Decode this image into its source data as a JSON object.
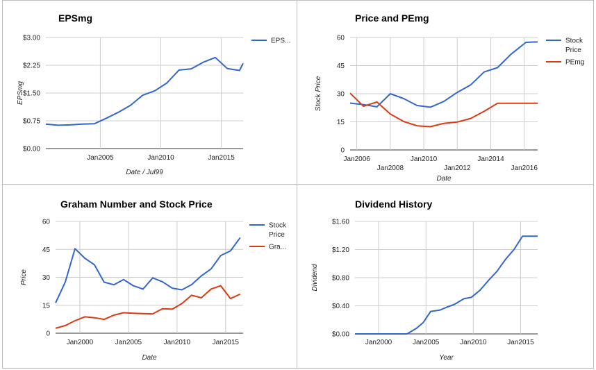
{
  "colors": {
    "blue": "#3366cc",
    "red": "#dc3912",
    "grid": "#cccccc",
    "baseline": "#333333"
  },
  "chart_data": [
    {
      "type": "line",
      "title": "EPSmg",
      "xlabel": "Date / Jul99",
      "ylabel": "EPSmg",
      "grid": true,
      "legend_placement": "right",
      "xlim": [
        2000.5,
        2016.8
      ],
      "ylim": [
        0,
        3
      ],
      "y_ticks": [
        "$0.00",
        "$0.75",
        "$1.50",
        "$2.25",
        "$3.00"
      ],
      "y_tick_values": [
        0,
        0.75,
        1.5,
        2.25,
        3
      ],
      "x_ticks": [
        {
          "label": "Jan2005",
          "value": 2005
        },
        {
          "label": "Jan2010",
          "value": 2010
        },
        {
          "label": "Jan2015",
          "value": 2015
        }
      ],
      "series": [
        {
          "name": "EPS...",
          "color": "#3366cc",
          "x": [
            2000.5,
            2001.5,
            2002.5,
            2003.5,
            2004.5,
            2005.5,
            2006.5,
            2007.5,
            2008.5,
            2009.5,
            2010.5,
            2011.5,
            2012.5,
            2013.5,
            2014.5,
            2015.5,
            2016.5,
            2016.8
          ],
          "y": [
            0.66,
            0.63,
            0.64,
            0.66,
            0.67,
            0.82,
            0.98,
            1.17,
            1.44,
            1.56,
            1.77,
            2.12,
            2.15,
            2.33,
            2.46,
            2.16,
            2.11,
            2.3
          ]
        }
      ]
    },
    {
      "type": "line",
      "title": "Price and PEmg",
      "xlabel": "Date",
      "ylabel": "Stock Price",
      "grid": true,
      "legend_placement": "right",
      "xlim": [
        2005.6,
        2016.8
      ],
      "ylim": [
        0,
        60
      ],
      "y_ticks": [
        "0",
        "15",
        "30",
        "45",
        "60"
      ],
      "y_tick_values": [
        0,
        15,
        30,
        45,
        60
      ],
      "x_ticks": [
        {
          "label": "Jan2006",
          "value": 2006,
          "row": 1
        },
        {
          "label": "Jan2008",
          "value": 2008,
          "row": 2
        },
        {
          "label": "Jan2010",
          "value": 2010,
          "row": 1
        },
        {
          "label": "Jan2012",
          "value": 2012,
          "row": 2
        },
        {
          "label": "Jan2014",
          "value": 2014,
          "row": 1
        },
        {
          "label": "Jan2016",
          "value": 2016,
          "row": 2
        }
      ],
      "series": [
        {
          "name": "Stock Price",
          "color": "#3366cc",
          "x": [
            2005.6,
            2006.4,
            2007.2,
            2008.0,
            2008.8,
            2009.6,
            2010.4,
            2011.2,
            2012.0,
            2012.8,
            2013.6,
            2014.4,
            2015.2,
            2016.1,
            2016.6,
            2016.8
          ],
          "y": [
            25,
            24.2,
            23,
            30,
            27.4,
            23.7,
            22.8,
            25.9,
            30.7,
            34.7,
            41.6,
            43.9,
            51,
            57.4,
            57.6,
            57.6
          ]
        },
        {
          "name": "PEmg",
          "color": "#dc3912",
          "x": [
            2005.6,
            2006.4,
            2007.2,
            2008.0,
            2008.8,
            2009.6,
            2010.4,
            2011.2,
            2012.0,
            2012.8,
            2013.6,
            2014.4,
            2015.2,
            2016.1,
            2016.6,
            2016.8
          ],
          "y": [
            30.3,
            23.3,
            25.6,
            19.2,
            15.2,
            12.9,
            12.4,
            14.2,
            14.9,
            16.8,
            20.6,
            24.9,
            24.9,
            24.9,
            24.9,
            24.9
          ]
        }
      ]
    },
    {
      "type": "line",
      "title": "Graham Number and Stock Price",
      "xlabel": "Date",
      "ylabel": "Price",
      "grid": true,
      "legend_placement": "right",
      "xlim": [
        1997.5,
        2016.8
      ],
      "ylim": [
        0,
        60
      ],
      "y_ticks": [
        "0",
        "15",
        "30",
        "45",
        "60"
      ],
      "y_tick_values": [
        0,
        15,
        30,
        45,
        60
      ],
      "x_ticks": [
        {
          "label": "Jan2000",
          "value": 2000
        },
        {
          "label": "Jan2005",
          "value": 2005
        },
        {
          "label": "Jan2010",
          "value": 2010
        },
        {
          "label": "Jan2015",
          "value": 2015
        }
      ],
      "series": [
        {
          "name": "Stock Price",
          "color": "#3366cc",
          "x": [
            1997.5,
            1998.5,
            1999.5,
            2000.5,
            2001.5,
            2002.5,
            2003.5,
            2004.5,
            2005.5,
            2006.5,
            2007.5,
            2008.5,
            2009.5,
            2010.5,
            2011.5,
            2012.5,
            2013.5,
            2014.5,
            2015.5,
            2016.5
          ],
          "y": [
            16.3,
            27.5,
            45.4,
            40.3,
            36.7,
            27.4,
            26,
            28.8,
            25.5,
            23.7,
            29.7,
            27.6,
            24.2,
            23.3,
            26.1,
            30.8,
            34.5,
            41.7,
            44.2,
            51.3
          ]
        },
        {
          "name": "Gra...",
          "color": "#dc3912",
          "x": [
            1997.5,
            1998.5,
            1999.5,
            2000.5,
            2001.5,
            2002.5,
            2003.5,
            2004.5,
            2005.5,
            2006.5,
            2007.5,
            2008.5,
            2009.5,
            2010.5,
            2011.5,
            2012.5,
            2013.5,
            2014.5,
            2015.5,
            2016.5
          ],
          "y": [
            2.7,
            4.1,
            6.7,
            8.8,
            8.3,
            7.4,
            9.7,
            11,
            10.7,
            10.5,
            10.4,
            13.1,
            12.9,
            15.9,
            20.4,
            19,
            23.7,
            25.5,
            18.6,
            21
          ]
        }
      ]
    },
    {
      "type": "line",
      "title": "Dividend History",
      "xlabel": "Year",
      "ylabel": "Dividend",
      "grid": true,
      "legend_placement": "none",
      "xlim": [
        1997.5,
        2016.8
      ],
      "ylim": [
        0,
        1.6
      ],
      "y_ticks": [
        "$0.00",
        "$0.40",
        "$0.80",
        "$1.20",
        "$1.60"
      ],
      "y_tick_values": [
        0,
        0.4,
        0.8,
        1.2,
        1.6
      ],
      "x_ticks": [
        {
          "label": "Jan2000",
          "value": 2000
        },
        {
          "label": "Jan2005",
          "value": 2005
        },
        {
          "label": "Jan2010",
          "value": 2010
        },
        {
          "label": "Jan2015",
          "value": 2015
        }
      ],
      "series": [
        {
          "name": "",
          "color": "#3366cc",
          "x": [
            1997.5,
            1998.5,
            1999.5,
            2000.5,
            2001.5,
            2002.5,
            2003.0,
            2004.0,
            2004.7,
            2005.5,
            2006.5,
            2007.2,
            2008.0,
            2009.0,
            2009.8,
            2010.7,
            2011.6,
            2012.5,
            2013.4,
            2014.3,
            2015.2,
            2016.1,
            2016.8
          ],
          "y": [
            0,
            0,
            0,
            0,
            0,
            0,
            0,
            0.08,
            0.16,
            0.32,
            0.34,
            0.38,
            0.42,
            0.5,
            0.52,
            0.62,
            0.76,
            0.89,
            1.06,
            1.2,
            1.39,
            1.39,
            1.39
          ]
        }
      ]
    }
  ]
}
